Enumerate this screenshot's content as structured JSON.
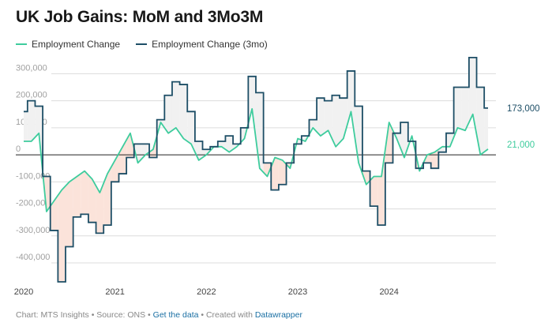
{
  "title": "UK Job Gains: MoM and 3Mo3M",
  "colors": {
    "mom": "#3ecc9d",
    "three_mo": "#1d4e66",
    "pos_fill": "#f1f1f1",
    "neg_fill": "#fbe3da",
    "grid": "#dcdcdc",
    "zero_line": "#222222"
  },
  "legend": {
    "mom": "Employment Change",
    "three_mo": "Employment Change (3mo)"
  },
  "footer": {
    "prefix": "Chart: MTS Insights • Source: ONS • ",
    "get_data": "Get the data",
    "middle": " • Created with ",
    "tool": "Datawrapper"
  },
  "chart_data": {
    "type": "line",
    "x_start": "2020-01",
    "x_end": "2024-09",
    "ylim": [
      -470000,
      380000
    ],
    "yticks": [
      {
        "value": 300000,
        "label": "300,000"
      },
      {
        "value": 200000,
        "label": "200,000"
      },
      {
        "value": 100000,
        "label": "100,000"
      },
      {
        "value": 0,
        "label": "0"
      },
      {
        "value": -100000,
        "label": "-100,000"
      },
      {
        "value": -200000,
        "label": "-200,000"
      },
      {
        "value": -300000,
        "label": "-300,000"
      },
      {
        "value": -400000,
        "label": "-400,000"
      }
    ],
    "xticks": [
      "2020",
      "2021",
      "2022",
      "2023",
      "2024"
    ],
    "grid": true,
    "legend_position": "top-left",
    "series": [
      {
        "name": "Employment Change",
        "style": "line",
        "end_label": "21,000",
        "values": [
          50000,
          50000,
          80000,
          -210000,
          -170000,
          -130000,
          -100000,
          -80000,
          -60000,
          -90000,
          -140000,
          -70000,
          -20000,
          30000,
          80000,
          -30000,
          0,
          20000,
          120000,
          80000,
          100000,
          60000,
          40000,
          -20000,
          0,
          30000,
          30000,
          10000,
          30000,
          60000,
          170000,
          -50000,
          -80000,
          -10000,
          -20000,
          -50000,
          60000,
          50000,
          100000,
          70000,
          90000,
          30000,
          60000,
          160000,
          -30000,
          -110000,
          -80000,
          -80000,
          120000,
          60000,
          -10000,
          70000,
          -60000,
          0,
          10000,
          30000,
          30000,
          100000,
          90000,
          150000,
          0,
          21000
        ]
      },
      {
        "name": "Employment Change (3mo)",
        "style": "step",
        "end_label": "173,000",
        "values": [
          160000,
          200000,
          180000,
          -80000,
          -280000,
          -470000,
          -340000,
          -230000,
          -220000,
          -250000,
          -290000,
          -260000,
          -100000,
          -70000,
          -10000,
          40000,
          40000,
          -10000,
          130000,
          220000,
          270000,
          260000,
          160000,
          50000,
          20000,
          30000,
          50000,
          70000,
          40000,
          100000,
          290000,
          230000,
          -30000,
          -130000,
          -110000,
          -30000,
          40000,
          70000,
          130000,
          210000,
          200000,
          220000,
          210000,
          310000,
          180000,
          -60000,
          -190000,
          -260000,
          -30000,
          80000,
          120000,
          50000,
          -50000,
          -30000,
          -50000,
          10000,
          80000,
          250000,
          250000,
          360000,
          250000,
          173000
        ]
      }
    ]
  }
}
